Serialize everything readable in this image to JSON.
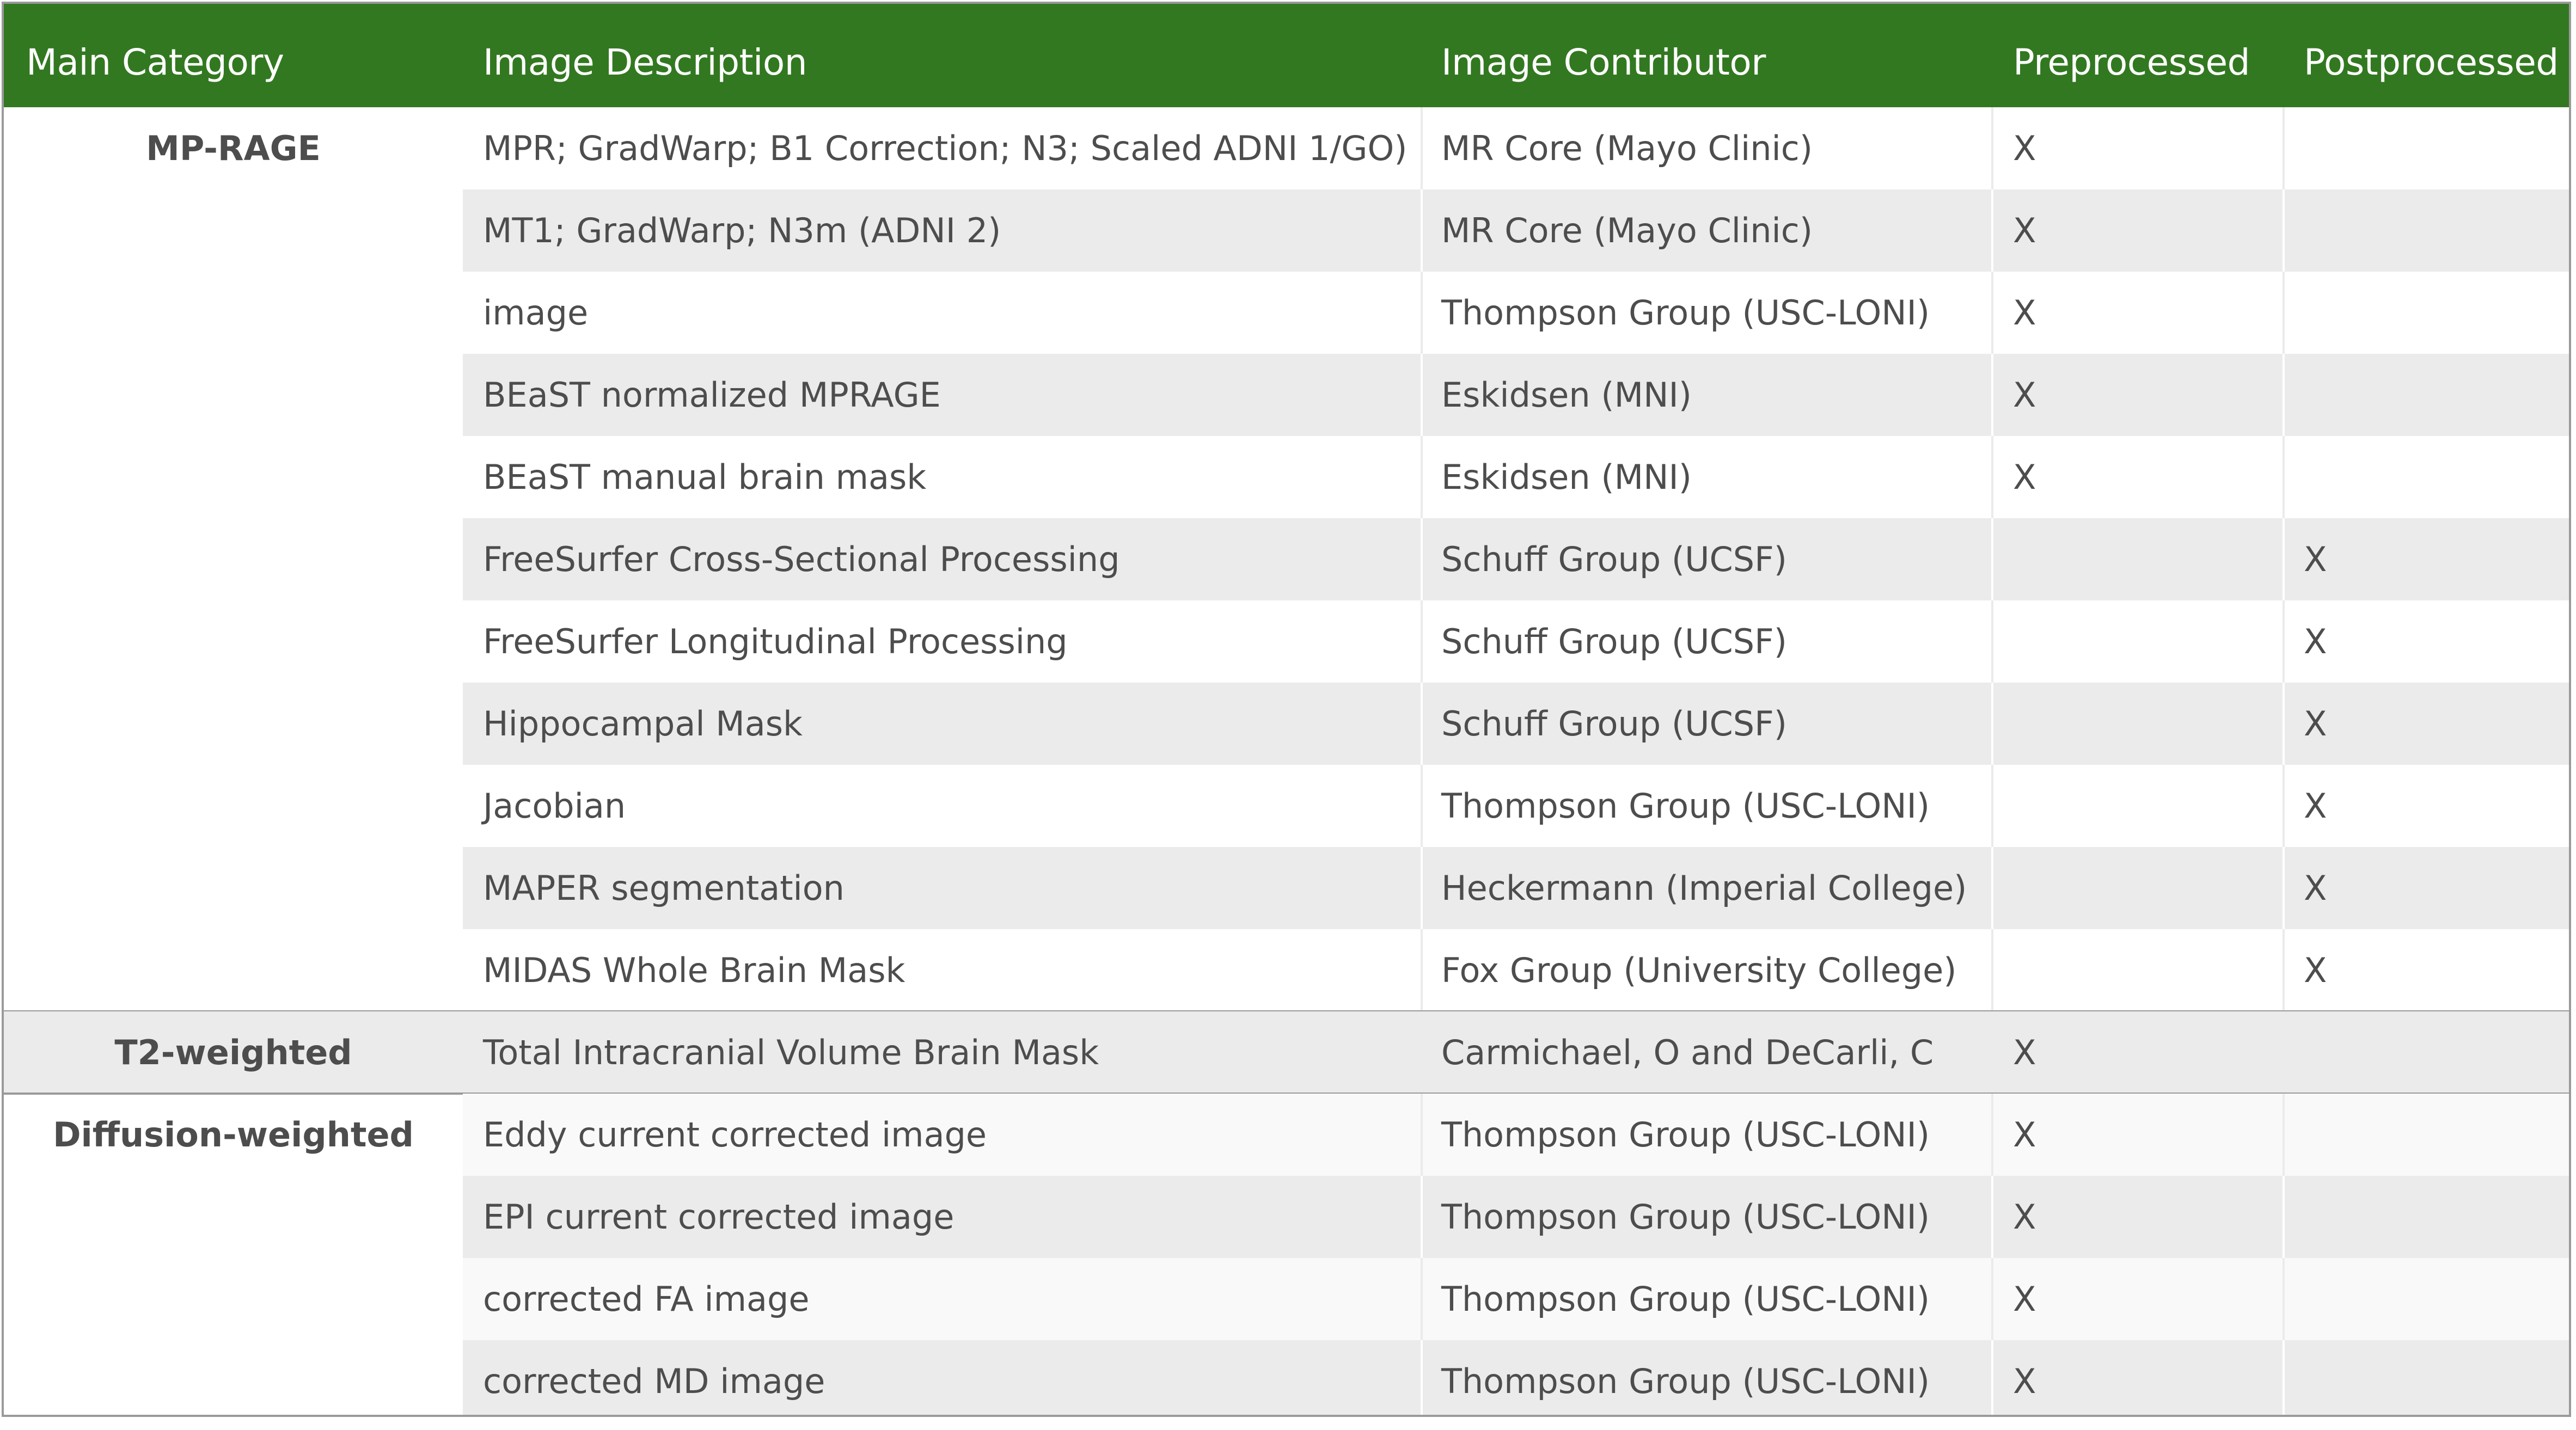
{
  "table": {
    "headers": {
      "main_category": "Main Category",
      "image_description": "Image Description",
      "image_contributor": "Image Contributor",
      "preprocessed": "Preprocessed",
      "postprocessed": "Postprocessed"
    },
    "groups": [
      {
        "category": "MP-RAGE",
        "rows": [
          {
            "description": "MPR; GradWarp; B1 Correction; N3; Scaled ADNI 1/GO)",
            "contributor": "MR Core (Mayo Clinic)",
            "preprocessed": "X",
            "postprocessed": ""
          },
          {
            "description": "MT1; GradWarp; N3m (ADNI 2)",
            "contributor": "MR Core (Mayo Clinic)",
            "preprocessed": "X",
            "postprocessed": ""
          },
          {
            "description": "image",
            "contributor": "Thompson Group (USC-LONI)",
            "preprocessed": "X",
            "postprocessed": ""
          },
          {
            "description": "BEaST normalized MPRAGE",
            "contributor": "Eskidsen (MNI)",
            "preprocessed": "X",
            "postprocessed": ""
          },
          {
            "description": "BEaST manual brain mask",
            "contributor": "Eskidsen (MNI)",
            "preprocessed": "X",
            "postprocessed": ""
          },
          {
            "description": "FreeSurfer Cross-Sectional Processing",
            "contributor": "Schuff Group (UCSF)",
            "preprocessed": "",
            "postprocessed": "X"
          },
          {
            "description": "FreeSurfer Longitudinal Processing",
            "contributor": "Schuff Group (UCSF)",
            "preprocessed": "",
            "postprocessed": "X"
          },
          {
            "description": "Hippocampal Mask",
            "contributor": "Schuff Group (UCSF)",
            "preprocessed": "",
            "postprocessed": "X"
          },
          {
            "description": "Jacobian",
            "contributor": "Thompson Group (USC-LONI)",
            "preprocessed": "",
            "postprocessed": "X"
          },
          {
            "description": "MAPER segmentation",
            "contributor": "Heckermann (Imperial College)",
            "preprocessed": "",
            "postprocessed": "X"
          },
          {
            "description": "MIDAS Whole Brain Mask",
            "contributor": "Fox Group (University College)",
            "preprocessed": "",
            "postprocessed": "X"
          }
        ]
      },
      {
        "category": "T2-weighted",
        "rows": [
          {
            "description": "Total Intracranial Volume Brain Mask",
            "contributor": "Carmichael, O and DeCarli, C",
            "preprocessed": "X",
            "postprocessed": ""
          }
        ]
      },
      {
        "category": "Diffusion-weighted",
        "rows": [
          {
            "description": "Eddy current corrected image",
            "contributor": "Thompson Group (USC-LONI)",
            "preprocessed": "X",
            "postprocessed": ""
          },
          {
            "description": "EPI current corrected image",
            "contributor": "Thompson Group (USC-LONI)",
            "preprocessed": "X",
            "postprocessed": ""
          },
          {
            "description": "corrected FA image",
            "contributor": "Thompson Group (USC-LONI)",
            "preprocessed": "X",
            "postprocessed": ""
          },
          {
            "description": "corrected MD image",
            "contributor": "Thompson Group (USC-LONI)",
            "preprocessed": "X",
            "postprocessed": ""
          }
        ]
      }
    ]
  },
  "colors": {
    "header_bg": "#327820",
    "header_text": "#ffffff",
    "alt_row_bg": "#ebebeb",
    "body_text": "#4d4d4d",
    "border": "#9a9a9a"
  }
}
